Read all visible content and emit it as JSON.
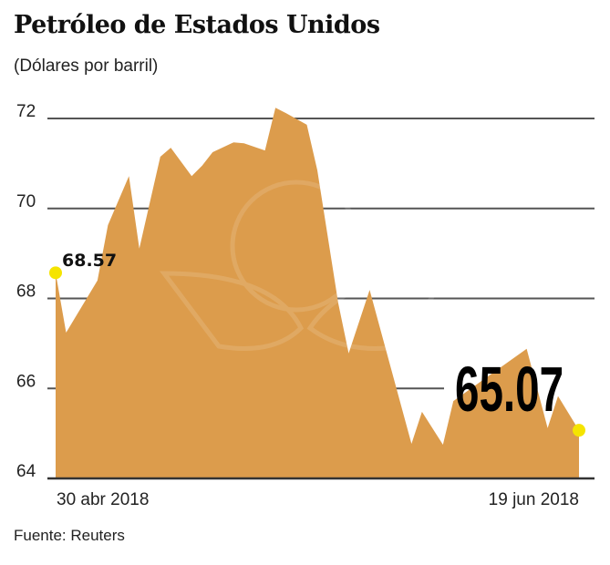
{
  "chart_data": {
    "type": "area",
    "title": "Petróleo de Estados Unidos",
    "subtitle": "(Dólares por barril)",
    "source": "Fuente: Reuters",
    "ylim": [
      64,
      72
    ],
    "yticks": [
      "64",
      "66",
      "68",
      "70",
      "72"
    ],
    "xlim": [
      "2018-04-30",
      "2018-06-19"
    ],
    "xtick_labels": [
      "30 abr 2018",
      "19 jun 2018"
    ],
    "grid": true,
    "fill_color": "#DC9C4C",
    "highlight_color": "#F5E400",
    "x": [
      "2018-04-30",
      "2018-05-01",
      "2018-05-04",
      "2018-05-05",
      "2018-05-07",
      "2018-05-08",
      "2018-05-10",
      "2018-05-11",
      "2018-05-13",
      "2018-05-14",
      "2018-05-15",
      "2018-05-17",
      "2018-05-18",
      "2018-05-20",
      "2018-05-21",
      "2018-05-22",
      "2018-05-24",
      "2018-05-25",
      "2018-05-27",
      "2018-05-28",
      "2018-05-30",
      "2018-06-03",
      "2018-06-04",
      "2018-06-06",
      "2018-06-07",
      "2018-06-14",
      "2018-06-16",
      "2018-06-17",
      "2018-06-19"
    ],
    "values": [
      68.57,
      67.24,
      68.4,
      69.63,
      70.72,
      69.11,
      71.15,
      71.35,
      70.72,
      70.95,
      71.25,
      71.47,
      71.45,
      71.29,
      72.24,
      72.12,
      71.86,
      70.85,
      67.89,
      66.78,
      68.19,
      64.77,
      65.48,
      64.75,
      65.72,
      66.88,
      65.12,
      65.83,
      65.07
    ],
    "annotations": [
      {
        "label": "68.57",
        "at": "start"
      },
      {
        "label": "65.07",
        "at": "end"
      }
    ]
  }
}
